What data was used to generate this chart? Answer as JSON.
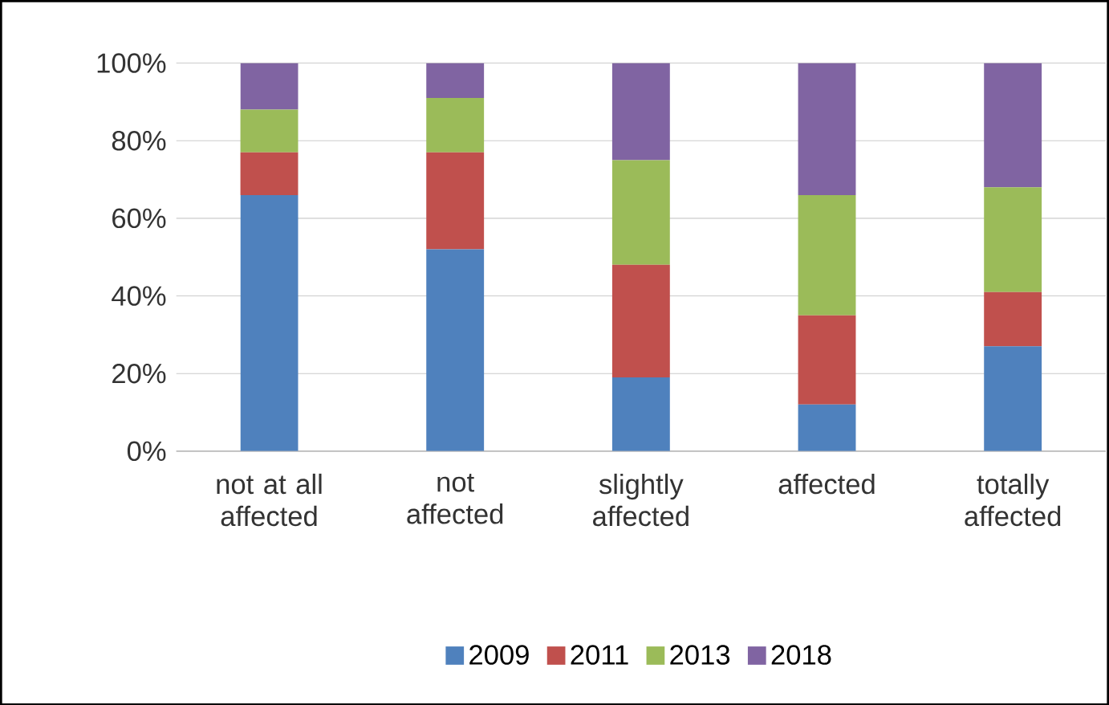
{
  "chart_data": {
    "type": "bar",
    "stacked": true,
    "categories": [
      "not at all affected",
      "not affected",
      "slightly affected",
      "affected",
      "totally affected"
    ],
    "series": [
      {
        "name": "2009",
        "color": "#4f81bd",
        "values": [
          66,
          52,
          19,
          12,
          27
        ]
      },
      {
        "name": "2011",
        "color": "#c0504d",
        "values": [
          11,
          25,
          29,
          23,
          14
        ]
      },
      {
        "name": "2013",
        "color": "#9bbb59",
        "values": [
          11,
          14,
          27,
          31,
          27
        ]
      },
      {
        "name": "2018",
        "color": "#8064a2",
        "values": [
          12,
          9,
          25,
          34,
          32
        ]
      }
    ],
    "ylim": [
      0,
      100
    ],
    "yticks": [
      {
        "value": 0,
        "label": "0%"
      },
      {
        "value": 20,
        "label": "20%"
      },
      {
        "value": 40,
        "label": "40%"
      },
      {
        "value": 60,
        "label": "60%"
      },
      {
        "value": 80,
        "label": "80%"
      },
      {
        "value": 100,
        "label": "100%"
      }
    ],
    "grid": "y",
    "legend": "bottom"
  }
}
